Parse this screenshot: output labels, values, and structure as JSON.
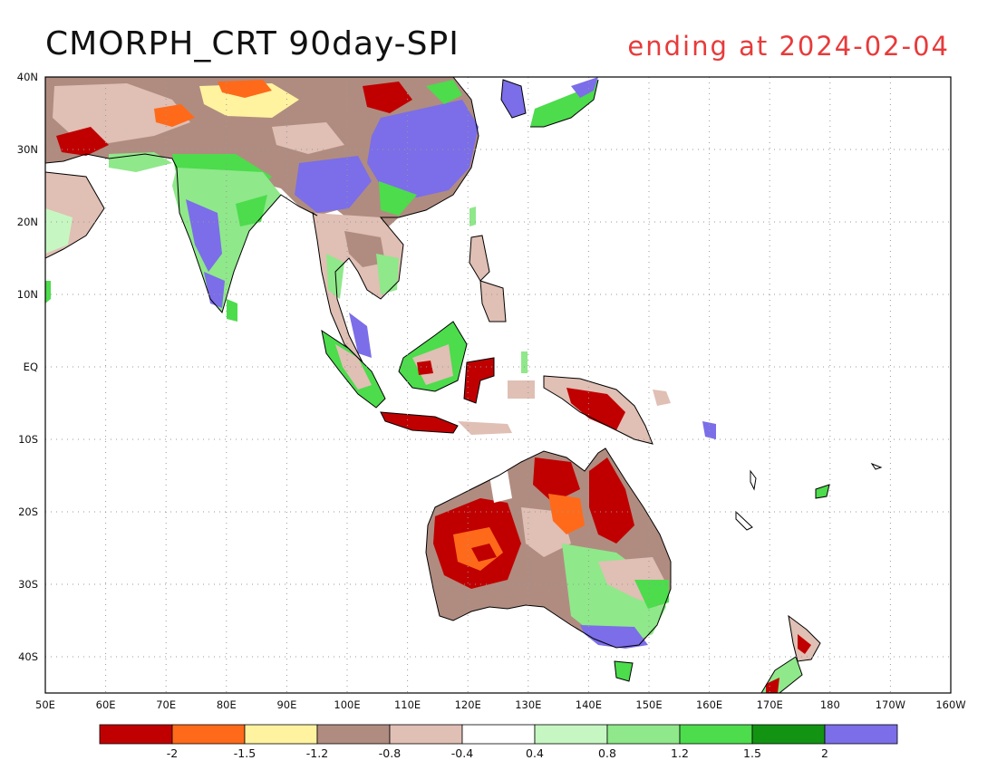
{
  "title": {
    "main": "CMORPH_CRT 90day-SPI",
    "subtitle": "ending at 2024-02-04",
    "subtitle_color": "#e83a3a"
  },
  "map": {
    "lon_range": [
      50,
      200
    ],
    "lat_range": [
      -45,
      40
    ],
    "grid": "dotted",
    "lon_ticks": [
      "50E",
      "60E",
      "70E",
      "80E",
      "90E",
      "100E",
      "110E",
      "120E",
      "130E",
      "140E",
      "150E",
      "160E",
      "170E",
      "180",
      "170W",
      "160W"
    ],
    "lat_ticks": [
      "40N",
      "30N",
      "20N",
      "10N",
      "EQ",
      "10S",
      "20S",
      "30S",
      "40S"
    ]
  },
  "colorbar": {
    "colors": [
      "#c00000",
      "#ff6a1a",
      "#fff3a0",
      "#b08c80",
      "#e0bfb4",
      "#ffffff",
      "#c6f7c2",
      "#8fe88a",
      "#4cdc4c",
      "#129412",
      "#7b6ee8"
    ],
    "labels": [
      "-2",
      "-1.5",
      "-1.2",
      "-0.8",
      "-0.4",
      "0.4",
      "0.8",
      "1.2",
      "1.5",
      "2"
    ]
  }
}
